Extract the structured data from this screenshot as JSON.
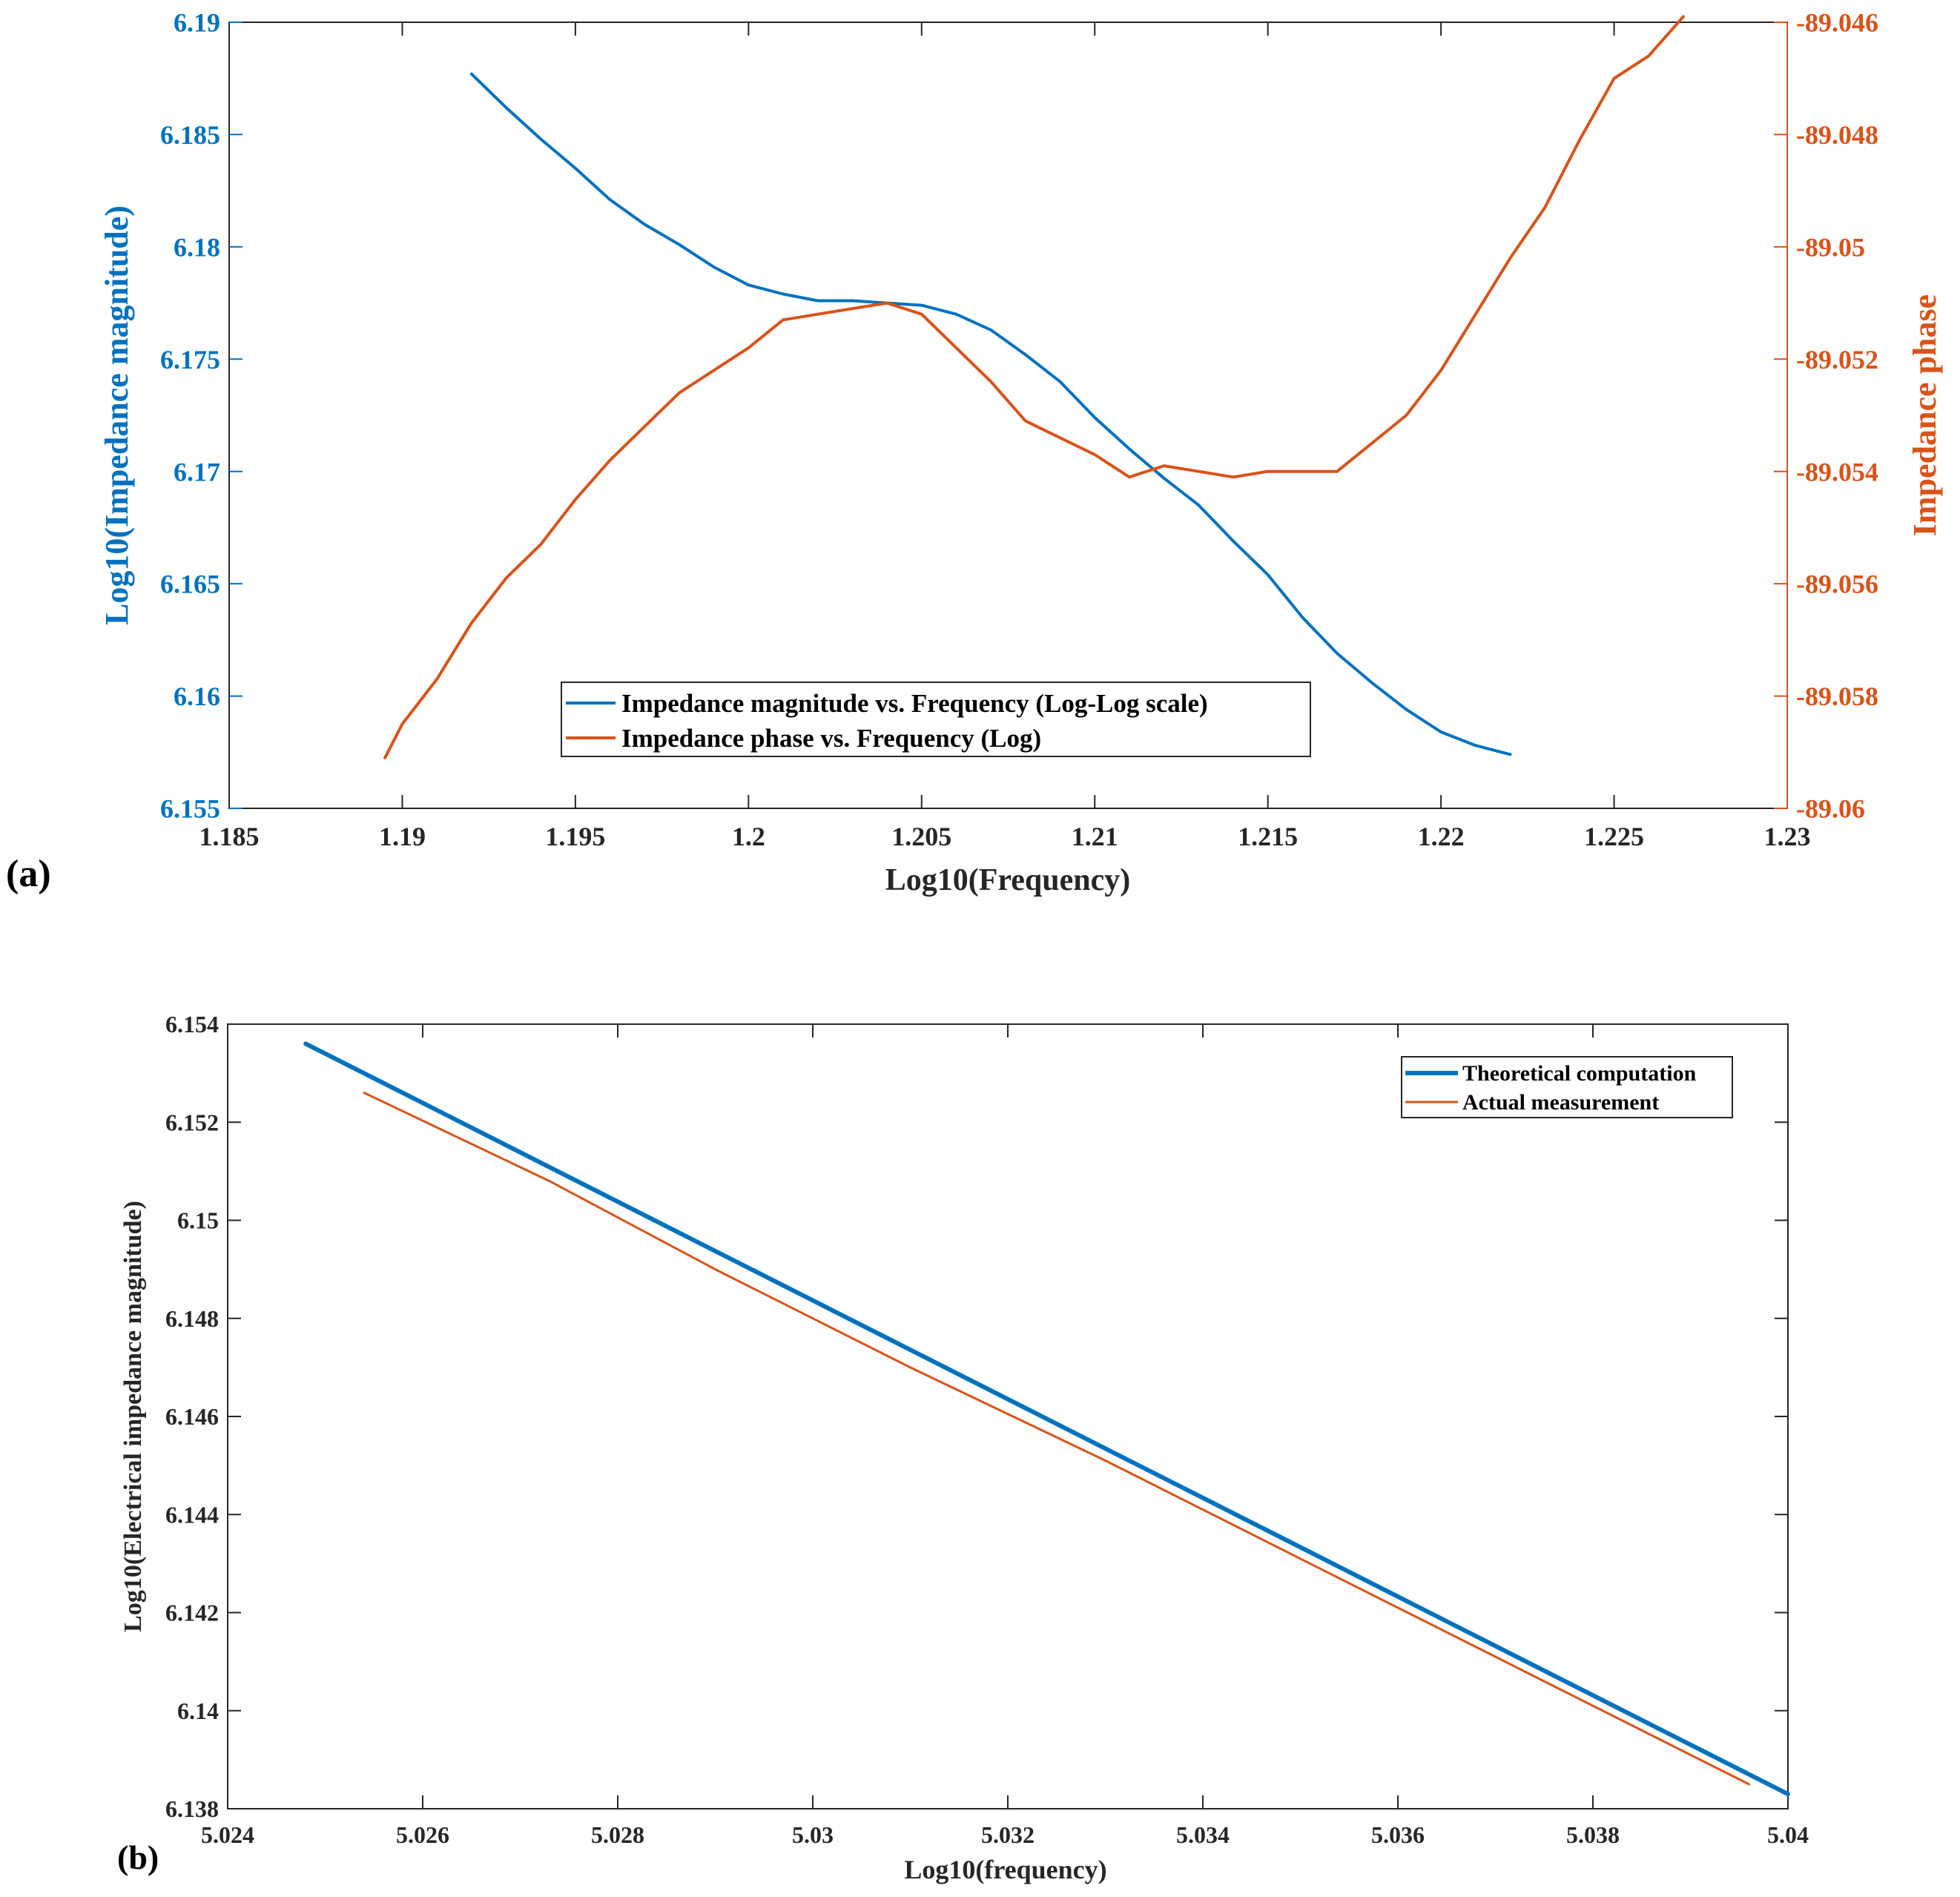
{
  "chart_data": [
    {
      "panel_label": "(a)",
      "type": "line",
      "title": "",
      "xlabel": "Log10(Frequency)",
      "ylabel": "Log10(Impedance magnitude)",
      "y2label": "Impedance phase",
      "xlim": [
        1.185,
        1.23
      ],
      "ylim": [
        6.155,
        6.19
      ],
      "y2lim": [
        -89.06,
        -89.046
      ],
      "xticks": [
        "1.185",
        "1.19",
        "1.195",
        "1.2",
        "1.205",
        "1.21",
        "1.215",
        "1.22",
        "1.225",
        "1.23"
      ],
      "yticks": [
        "6.155",
        "6.16",
        "6.165",
        "6.17",
        "6.175",
        "6.18",
        "6.185",
        "6.19"
      ],
      "y2ticks": [
        "-89.06",
        "-89.058",
        "-89.056",
        "-89.054",
        "-89.052",
        "-89.05",
        "-89.048",
        "-89.046"
      ],
      "grid": false,
      "legend_position": "bottom-center",
      "colors": {
        "left_axis": "#0072BD",
        "right_axis": "#D95319",
        "frame": "#262626"
      },
      "series": [
        {
          "name": "Impedance magnitude vs. Frequency (Log-Log scale)",
          "axis": "left",
          "color": "#0072BD",
          "x": [
            1.192,
            1.193,
            1.194,
            1.195,
            1.196,
            1.197,
            1.198,
            1.199,
            1.2,
            1.201,
            1.202,
            1.203,
            1.204,
            1.205,
            1.206,
            1.207,
            1.208,
            1.209,
            1.21,
            1.211,
            1.212,
            1.213,
            1.214,
            1.215,
            1.216,
            1.217,
            1.218,
            1.219,
            1.22,
            1.221,
            1.222
          ],
          "y": [
            6.1877,
            6.1862,
            6.1848,
            6.1835,
            6.1821,
            6.181,
            6.1801,
            6.1791,
            6.1783,
            6.1779,
            6.1776,
            6.1776,
            6.1775,
            6.1774,
            6.177,
            6.1763,
            6.1752,
            6.174,
            6.1724,
            6.171,
            6.1697,
            6.1685,
            6.1669,
            6.1654,
            6.1635,
            6.1619,
            6.1606,
            6.1594,
            6.1584,
            6.1578,
            6.1574
          ]
        },
        {
          "name": "Impedance phase vs. Frequency (Log)",
          "axis": "right",
          "color": "#D95319",
          "x": [
            1.1895,
            1.19,
            1.191,
            1.192,
            1.193,
            1.194,
            1.195,
            1.196,
            1.197,
            1.198,
            1.199,
            1.2,
            1.201,
            1.202,
            1.203,
            1.204,
            1.205,
            1.206,
            1.207,
            1.208,
            1.209,
            1.21,
            1.211,
            1.212,
            1.213,
            1.214,
            1.215,
            1.216,
            1.217,
            1.218,
            1.219,
            1.22,
            1.221,
            1.222,
            1.223,
            1.224,
            1.225,
            1.226,
            1.227
          ],
          "y": [
            -89.0591,
            -89.0585,
            -89.0577,
            -89.0567,
            -89.0559,
            -89.0553,
            -89.0545,
            -89.0538,
            -89.0532,
            -89.0526,
            -89.0522,
            -89.0518,
            -89.0513,
            -89.0512,
            -89.0511,
            -89.051,
            -89.0512,
            -89.0518,
            -89.0524,
            -89.0531,
            -89.0534,
            -89.0537,
            -89.0541,
            -89.0539,
            -89.054,
            -89.0541,
            -89.054,
            -89.054,
            -89.054,
            -89.0535,
            -89.053,
            -89.0522,
            -89.0512,
            -89.0502,
            -89.0493,
            -89.0481,
            -89.047,
            -89.0466,
            -89.0459
          ]
        }
      ]
    },
    {
      "panel_label": "(b)",
      "type": "line",
      "title": "",
      "xlabel": "Log10(frequency)",
      "ylabel": "Log10(Electrical impedance magnitude)",
      "xlim": [
        5.024,
        5.04
      ],
      "ylim": [
        6.138,
        6.154
      ],
      "xticks": [
        "5.024",
        "5.026",
        "5.028",
        "5.03",
        "5.032",
        "5.034",
        "5.036",
        "5.038",
        "5.04"
      ],
      "yticks": [
        "6.138",
        "6.14",
        "6.142",
        "6.144",
        "6.146",
        "6.148",
        "6.15",
        "6.152",
        "6.154"
      ],
      "grid": false,
      "legend_position": "top-right",
      "colors": {
        "frame": "#262626"
      },
      "series": [
        {
          "name": "Theoretical computation",
          "color": "#0072BD",
          "x": [
            5.0248,
            5.04
          ],
          "y": [
            6.1536,
            6.1383
          ]
        },
        {
          "name": "Actual measurement",
          "color": "#D95319",
          "x": [
            5.0254,
            5.0273,
            5.029,
            5.031,
            5.033,
            5.035,
            5.0375,
            5.0396
          ],
          "y": [
            6.1526,
            6.1508,
            6.149,
            6.147,
            6.1451,
            6.1431,
            6.1406,
            6.1385
          ]
        }
      ]
    }
  ]
}
